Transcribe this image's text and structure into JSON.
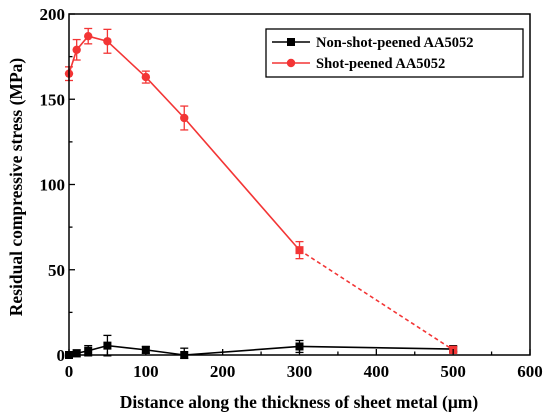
{
  "chart_data": {
    "type": "line",
    "xlabel": "Distance along the thickness of sheet metal (μm)",
    "ylabel": "Residual compressive stress (MPa)",
    "xlim": [
      0,
      600
    ],
    "ylim": [
      0,
      200
    ],
    "xticks": [
      0,
      100,
      200,
      300,
      400,
      500,
      600
    ],
    "yticks": [
      0,
      50,
      100,
      150,
      200
    ],
    "grid": false,
    "legend_position": "top-right",
    "series": [
      {
        "name": "Non-shot-peened AA5052",
        "color": "#000000",
        "marker": "square",
        "x": [
          0,
          10,
          25,
          50,
          100,
          150,
          300,
          500
        ],
        "y": [
          0,
          1,
          2.5,
          5.5,
          3,
          0,
          5,
          3.5
        ],
        "err": [
          1.5,
          2,
          3,
          6,
          2,
          4,
          3.5,
          1.5
        ]
      },
      {
        "name": "Shot-peened AA5052",
        "color": "#f33535",
        "marker": "circle",
        "x": [
          0,
          10,
          25,
          50,
          100,
          150,
          300,
          500
        ],
        "y": [
          165,
          179,
          187,
          184,
          163,
          139,
          61.5,
          3
        ],
        "err": [
          4,
          6,
          4.5,
          7,
          3.5,
          7,
          5,
          2
        ],
        "dashed_from_index": 6
      }
    ]
  }
}
